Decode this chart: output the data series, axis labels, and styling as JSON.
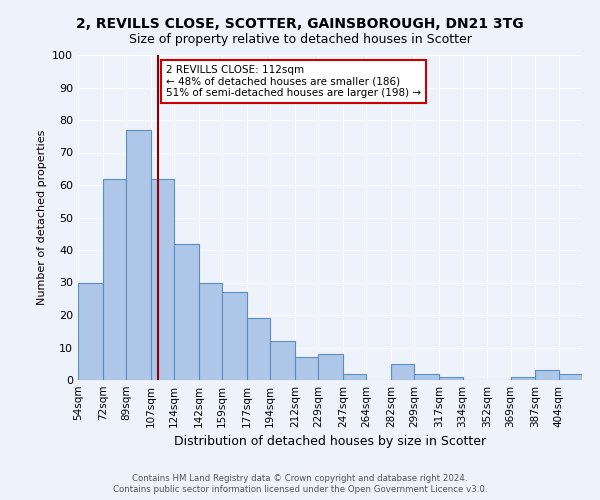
{
  "title": "2, REVILLS CLOSE, SCOTTER, GAINSBOROUGH, DN21 3TG",
  "subtitle": "Size of property relative to detached houses in Scotter",
  "xlabel": "Distribution of detached houses by size in Scotter",
  "ylabel": "Number of detached properties",
  "bin_labels": [
    "54sqm",
    "72sqm",
    "89sqm",
    "107sqm",
    "124sqm",
    "142sqm",
    "159sqm",
    "177sqm",
    "194sqm",
    "212sqm",
    "229sqm",
    "247sqm",
    "264sqm",
    "282sqm",
    "299sqm",
    "317sqm",
    "334sqm",
    "352sqm",
    "369sqm",
    "387sqm",
    "404sqm"
  ],
  "bin_edges": [
    54,
    72,
    89,
    107,
    124,
    142,
    159,
    177,
    194,
    212,
    229,
    247,
    264,
    282,
    299,
    317,
    334,
    352,
    369,
    387,
    404
  ],
  "counts": [
    30,
    62,
    77,
    62,
    42,
    30,
    27,
    19,
    12,
    7,
    8,
    2,
    0,
    5,
    2,
    1,
    0,
    0,
    1,
    3,
    2
  ],
  "bar_color": "#aec6e8",
  "bar_edge_color": "#5a8fc2",
  "vline_x": 112,
  "vline_color": "#8b0000",
  "annotation_text": "2 REVILLS CLOSE: 112sqm\n← 48% of detached houses are smaller (186)\n51% of semi-detached houses are larger (198) →",
  "annotation_box_color": "#ffffff",
  "annotation_box_edge": "#cc0000",
  "ylim": [
    0,
    100
  ],
  "yticks": [
    0,
    10,
    20,
    30,
    40,
    50,
    60,
    70,
    80,
    90,
    100
  ],
  "footer1": "Contains HM Land Registry data © Crown copyright and database right 2024.",
  "footer2": "Contains public sector information licensed under the Open Government Licence v3.0.",
  "bg_color": "#eef2fa",
  "grid_color": "#ffffff"
}
